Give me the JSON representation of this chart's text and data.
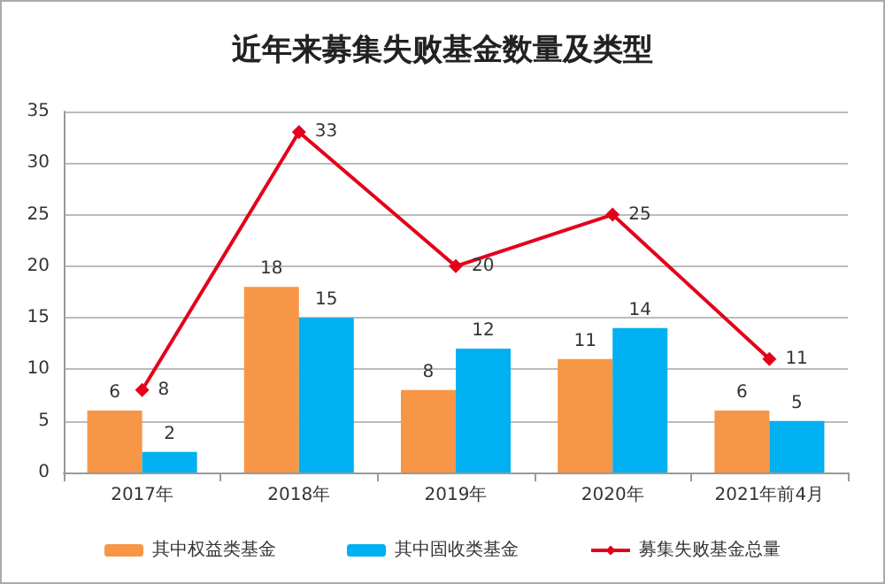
{
  "chart_data": {
    "type": "bar",
    "title": "近年来募集失败基金数量及类型",
    "categories": [
      "2017年",
      "2018年",
      "2019年",
      "2020年",
      "2021年前4月"
    ],
    "series": [
      {
        "name": "其中权益类基金",
        "color": "#f79646",
        "values": [
          6,
          18,
          8,
          11,
          6
        ]
      },
      {
        "name": "其中固收类基金",
        "color": "#00b0f0",
        "values": [
          2,
          15,
          12,
          14,
          5
        ]
      },
      {
        "name": "募集失败基金总量",
        "type": "line",
        "color": "#e3001b",
        "values": [
          8,
          33,
          20,
          25,
          11
        ],
        "marker": "diamond"
      }
    ],
    "ylim": [
      0,
      35
    ],
    "yticks": [
      0,
      5,
      10,
      15,
      20,
      25,
      30,
      35
    ],
    "grid": "y",
    "legend": "bottom",
    "data_labels": true
  }
}
